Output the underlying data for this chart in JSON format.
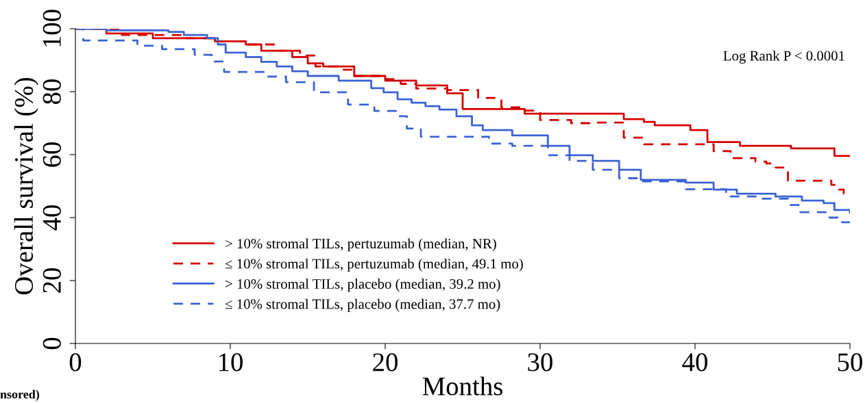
{
  "chart_data": {
    "type": "step",
    "xlabel": "Months",
    "ylabel": "Overall survival (%)",
    "xlim": [
      0,
      50
    ],
    "ylim": [
      0,
      100
    ],
    "xticks": [
      0,
      10,
      20,
      30,
      40,
      50
    ],
    "yticks": [
      0,
      20,
      40,
      60,
      80,
      100
    ],
    "grid": false,
    "legend": "bottom left",
    "marker": "none",
    "annotations": [
      "Log Rank P < 0.0001",
      "nsored)"
    ],
    "series": [
      {
        "name": "> 10% stromal TILs, pertuzumab (median, NR)",
        "color": "#d40000",
        "line_style": "solid",
        "x": [
          0,
          2,
          5,
          9,
          11,
          12,
          14,
          15,
          16,
          18,
          20,
          22,
          24,
          25,
          29,
          35.4,
          36.7,
          37.4,
          39.7,
          40.8,
          42.9,
          46.2,
          49,
          50
        ],
        "values": [
          100,
          98.5,
          97,
          96,
          95,
          93,
          91,
          89,
          88,
          85,
          83.5,
          82,
          79.5,
          74.5,
          73,
          71.3,
          70.4,
          69.3,
          67.8,
          64,
          62.8,
          62,
          59.6,
          59.6
        ]
      },
      {
        "name": "≤ 10% stromal TILs, pertuzumab (median, 49.1 mo)",
        "color": "#d40000",
        "line_style": "dashed",
        "x": [
          0,
          3,
          7,
          9,
          11,
          13,
          14.5,
          15.5,
          17,
          18,
          20,
          21,
          22,
          24,
          26,
          27.5,
          29,
          30,
          32,
          33.2,
          35.4,
          36.7,
          41.2,
          42.3,
          43.9,
          44.6,
          45.2,
          45.9,
          46,
          48.8,
          49.2,
          49.6,
          50
        ],
        "values": [
          100,
          98,
          97,
          96,
          95,
          93,
          91.5,
          88,
          87,
          85,
          84,
          82.5,
          81,
          80.5,
          78,
          75,
          74,
          71,
          70,
          70.2,
          65.4,
          63.3,
          61.1,
          58.9,
          57.8,
          57.2,
          55.9,
          54.8,
          51.7,
          50.4,
          48.9,
          47.6,
          47.6
        ]
      },
      {
        "name": "> 10% stromal TILs, placebo (median, 39.2 mo)",
        "color": "#3a62d4",
        "line_style": "solid",
        "x": [
          0,
          2,
          6,
          7,
          8.5,
          9.2,
          9.7,
          11,
          12,
          13,
          14,
          15,
          17,
          19.1,
          19.9,
          20.8,
          21.7,
          22.6,
          23.5,
          24.6,
          25.6,
          26.3,
          28.2,
          30.5,
          31.9,
          33.4,
          35.1,
          36.5,
          39.4,
          41.2,
          42.7,
          45.2,
          46.9,
          48.3,
          49,
          50
        ],
        "values": [
          100,
          99.5,
          99,
          98,
          97,
          95,
          92.4,
          91,
          89.5,
          88,
          86.5,
          85,
          83.5,
          81.1,
          79.8,
          77.6,
          76.5,
          75.4,
          74.3,
          72.2,
          69.3,
          67.8,
          66.1,
          62.8,
          59.8,
          58,
          55.2,
          52,
          51.1,
          48.9,
          47.6,
          46.7,
          45.4,
          44.6,
          42.4,
          41.5
        ]
      },
      {
        "name": "≤ 10% stromal TILs, placebo (median, 37.7 mo)",
        "color": "#3a62d4",
        "line_style": "dashed",
        "x": [
          0,
          0.5,
          4,
          5.6,
          7.7,
          8.8,
          9.6,
          12.3,
          13.6,
          15.4,
          17.6,
          19.3,
          20.8,
          21.4,
          22.3,
          26.7,
          28.2,
          30.5,
          31.9,
          33.4,
          35.1,
          36.5,
          39.4,
          42,
          44,
          46,
          46.8,
          48.5,
          49.5,
          50
        ],
        "values": [
          100,
          96.3,
          94.6,
          93.5,
          91.7,
          89.6,
          86.3,
          84.8,
          83,
          79.8,
          75.9,
          73.9,
          72.2,
          68.3,
          65.7,
          63.5,
          62.8,
          59.8,
          58,
          55.2,
          52.5,
          51.5,
          49,
          46.7,
          46,
          44,
          41.7,
          40,
          38.5,
          38.5
        ]
      }
    ]
  }
}
